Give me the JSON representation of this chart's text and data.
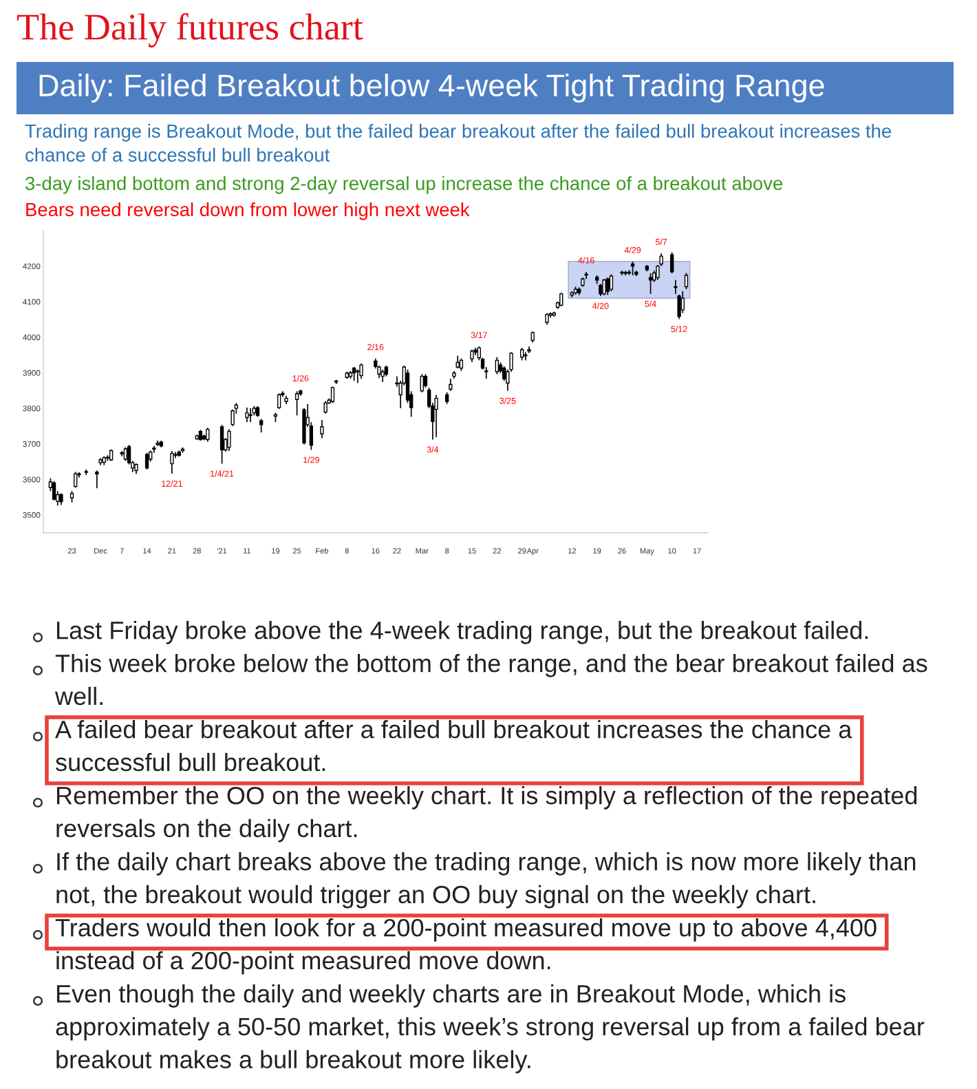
{
  "chart_data": {
    "type": "candlestick",
    "title": "The Daily futures chart",
    "subtitle": "Daily: Failed Breakout below 4-week Tight Trading Range",
    "x": [
      "2020-11-17",
      "2020-11-18",
      "2020-11-19",
      "2020-11-20",
      "2020-11-23",
      "2020-11-24",
      "2020-11-25",
      "2020-11-27",
      "2020-11-30",
      "2020-12-01",
      "2020-12-02",
      "2020-12-03",
      "2020-12-04",
      "2020-12-07",
      "2020-12-08",
      "2020-12-09",
      "2020-12-10",
      "2020-12-11",
      "2020-12-14",
      "2020-12-15",
      "2020-12-16",
      "2020-12-17",
      "2020-12-18",
      "2020-12-21",
      "2020-12-22",
      "2020-12-23",
      "2020-12-24",
      "2020-12-28",
      "2020-12-29",
      "2020-12-30",
      "2020-12-31",
      "2021-01-04",
      "2021-01-05",
      "2021-01-06",
      "2021-01-07",
      "2021-01-08",
      "2021-01-11",
      "2021-01-12",
      "2021-01-13",
      "2021-01-14",
      "2021-01-15",
      "2021-01-19",
      "2021-01-20",
      "2021-01-21",
      "2021-01-22",
      "2021-01-25",
      "2021-01-26",
      "2021-01-27",
      "2021-01-28",
      "2021-01-29",
      "2021-02-01",
      "2021-02-02",
      "2021-02-03",
      "2021-02-04",
      "2021-02-05",
      "2021-02-08",
      "2021-02-09",
      "2021-02-10",
      "2021-02-11",
      "2021-02-12",
      "2021-02-16",
      "2021-02-17",
      "2021-02-18",
      "2021-02-19",
      "2021-02-22",
      "2021-02-23",
      "2021-02-24",
      "2021-02-25",
      "2021-02-26",
      "2021-03-01",
      "2021-03-02",
      "2021-03-03",
      "2021-03-04",
      "2021-03-05",
      "2021-03-08",
      "2021-03-09",
      "2021-03-10",
      "2021-03-11",
      "2021-03-12",
      "2021-03-15",
      "2021-03-16",
      "2021-03-17",
      "2021-03-18",
      "2021-03-19",
      "2021-03-22",
      "2021-03-23",
      "2021-03-24",
      "2021-03-25",
      "2021-03-26",
      "2021-03-29",
      "2021-03-30",
      "2021-03-31",
      "2021-04-01",
      "2021-04-05",
      "2021-04-06",
      "2021-04-07",
      "2021-04-08",
      "2021-04-09",
      "2021-04-12",
      "2021-04-13",
      "2021-04-14",
      "2021-04-15",
      "2021-04-16",
      "2021-04-19",
      "2021-04-20",
      "2021-04-21",
      "2021-04-22",
      "2021-04-23",
      "2021-04-26",
      "2021-04-27",
      "2021-04-28",
      "2021-04-29",
      "2021-04-30",
      "2021-05-03",
      "2021-05-04",
      "2021-05-05",
      "2021-05-06",
      "2021-05-07",
      "2021-05-10",
      "2021-05-11",
      "2021-05-12",
      "2021-05-13",
      "2021-05-14"
    ],
    "ohlc": [
      [
        3577,
        3603,
        3567,
        3593
      ],
      [
        3590,
        3595,
        3541,
        3544
      ],
      [
        3538,
        3567,
        3526,
        3557
      ],
      [
        3557,
        3561,
        3528,
        3537
      ],
      [
        3548,
        3567,
        3535,
        3560
      ],
      [
        3580,
        3621,
        3577,
        3616
      ],
      [
        3615,
        3620,
        3605,
        3613
      ],
      [
        3620,
        3628,
        3612,
        3622
      ],
      [
        3620,
        3625,
        3575,
        3615
      ],
      [
        3647,
        3660,
        3640,
        3655
      ],
      [
        3648,
        3665,
        3640,
        3661
      ],
      [
        3660,
        3668,
        3652,
        3662
      ],
      [
        3655,
        3684,
        3652,
        3681
      ],
      [
        3675,
        3680,
        3665,
        3672
      ],
      [
        3657,
        3690,
        3652,
        3686
      ],
      [
        3692,
        3697,
        3642,
        3647
      ],
      [
        3632,
        3652,
        3620,
        3647
      ],
      [
        3625,
        3645,
        3615,
        3642
      ],
      [
        3670,
        3675,
        3628,
        3632
      ],
      [
        3657,
        3681,
        3650,
        3677
      ],
      [
        3685,
        3694,
        3675,
        3688
      ],
      [
        3698,
        3709,
        3694,
        3702
      ],
      [
        3705,
        3709,
        3690,
        3694
      ],
      [
        3644,
        3680,
        3616,
        3673
      ],
      [
        3668,
        3677,
        3660,
        3670
      ],
      [
        3677,
        3681,
        3664,
        3668
      ],
      [
        3681,
        3690,
        3675,
        3685
      ],
      [
        3714,
        3726,
        3712,
        3722
      ],
      [
        3735,
        3739,
        3709,
        3712
      ],
      [
        3722,
        3726,
        3710,
        3714
      ],
      [
        3712,
        3745,
        3706,
        3741
      ],
      [
        3748,
        3753,
        3644,
        3683
      ],
      [
        3683,
        3716,
        3678,
        3712
      ],
      [
        3690,
        3741,
        3680,
        3735
      ],
      [
        3754,
        3797,
        3750,
        3793
      ],
      [
        3800,
        3815,
        3785,
        3809
      ],
      [
        3774,
        3802,
        3761,
        3787
      ],
      [
        3782,
        3800,
        3761,
        3780
      ],
      [
        3787,
        3806,
        3780,
        3800
      ],
      [
        3802,
        3806,
        3776,
        3780
      ],
      [
        3765,
        3770,
        3732,
        3754
      ],
      [
        3778,
        3787,
        3761,
        3782
      ],
      [
        3802,
        3842,
        3798,
        3838
      ],
      [
        3842,
        3848,
        3832,
        3838
      ],
      [
        3819,
        3835,
        3812,
        3828
      ],
      [
        3825,
        3848,
        3780,
        3841
      ],
      [
        3849,
        3852,
        3835,
        3841
      ],
      [
        3796,
        3800,
        3698,
        3703
      ],
      [
        3754,
        3812,
        3748,
        3774
      ],
      [
        3750,
        3761,
        3683,
        3696
      ],
      [
        3728,
        3767,
        3716,
        3748
      ],
      [
        3789,
        3820,
        3785,
        3815
      ],
      [
        3815,
        3828,
        3812,
        3823
      ],
      [
        3819,
        3861,
        3815,
        3858
      ],
      [
        3877,
        3880,
        3868,
        3874
      ],
      [
        3887,
        3903,
        3883,
        3899
      ],
      [
        3890,
        3905,
        3883,
        3900
      ],
      [
        3913,
        3916,
        3877,
        3900
      ],
      [
        3903,
        3909,
        3871,
        3905
      ],
      [
        3892,
        3926,
        3883,
        3922
      ],
      [
        3933,
        3940,
        3912,
        3918
      ],
      [
        3896,
        3920,
        3885,
        3916
      ],
      [
        3890,
        3909,
        3874,
        3903
      ],
      [
        3916,
        3920,
        3890,
        3896
      ],
      [
        3871,
        3890,
        3861,
        3869
      ],
      [
        3838,
        3877,
        3800,
        3871
      ],
      [
        3871,
        3920,
        3864,
        3916
      ],
      [
        3899,
        3909,
        3815,
        3823
      ],
      [
        3838,
        3848,
        3776,
        3802
      ],
      [
        3849,
        3896,
        3845,
        3890
      ],
      [
        3890,
        3896,
        3858,
        3864
      ],
      [
        3851,
        3858,
        3800,
        3806
      ],
      [
        3806,
        3815,
        3712,
        3763
      ],
      [
        3797,
        3838,
        3719,
        3828
      ],
      [
        3838,
        3845,
        3812,
        3819
      ],
      [
        3854,
        3883,
        3849,
        3867
      ],
      [
        3890,
        3905,
        3883,
        3899
      ],
      [
        3916,
        3948,
        3912,
        3929
      ],
      [
        3913,
        3940,
        3905,
        3935
      ],
      [
        3939,
        3965,
        3930,
        3961
      ],
      [
        3964,
        3970,
        3950,
        3958
      ],
      [
        3942,
        3974,
        3935,
        3970
      ],
      [
        3938,
        3942,
        3909,
        3913
      ],
      [
        3905,
        3916,
        3883,
        3903
      ],
      [
        3903,
        3944,
        3896,
        3935
      ],
      [
        3922,
        3929,
        3899,
        3905
      ],
      [
        3913,
        3918,
        3877,
        3883
      ],
      [
        3871,
        3909,
        3849,
        3903
      ],
      [
        3909,
        3958,
        3903,
        3955
      ],
      [
        3944,
        3970,
        3935,
        3965
      ],
      [
        3950,
        3958,
        3935,
        3948
      ],
      [
        3961,
        3974,
        3955,
        3965
      ],
      [
        3991,
        4016,
        3985,
        4013
      ],
      [
        4042,
        4068,
        4035,
        4064
      ],
      [
        4062,
        4070,
        4055,
        4066
      ],
      [
        4062,
        4072,
        4058,
        4068
      ],
      [
        4084,
        4100,
        4080,
        4097
      ],
      [
        4090,
        4125,
        4087,
        4122
      ],
      [
        4119,
        4129,
        4112,
        4125
      ],
      [
        4125,
        4142,
        4120,
        4135
      ],
      [
        4135,
        4140,
        4119,
        4125
      ],
      [
        4146,
        4168,
        4142,
        4164
      ],
      [
        4175,
        4184,
        4164,
        4177
      ],
      [
        4169,
        4174,
        4150,
        4161
      ],
      [
        4146,
        4150,
        4116,
        4122
      ],
      [
        4122,
        4164,
        4118,
        4161
      ],
      [
        4164,
        4168,
        4119,
        4129
      ],
      [
        4135,
        4177,
        4129,
        4172
      ],
      [
        4181,
        4187,
        4174,
        4183
      ],
      [
        4182,
        4187,
        4174,
        4180
      ],
      [
        4181,
        4189,
        4175,
        4183
      ],
      [
        4206,
        4213,
        4174,
        4200
      ],
      [
        4183,
        4187,
        4172,
        4177
      ],
      [
        4200,
        4203,
        4185,
        4190
      ],
      [
        4168,
        4180,
        4122,
        4161
      ],
      [
        4161,
        4187,
        4155,
        4181
      ],
      [
        4168,
        4203,
        4161,
        4200
      ],
      [
        4206,
        4236,
        4200,
        4228
      ],
      [
        4232,
        4239,
        4180,
        4184
      ],
      [
        4142,
        4161,
        4122,
        4140
      ],
      [
        4116,
        4120,
        4051,
        4058
      ],
      [
        4077,
        4129,
        4068,
        4110
      ],
      [
        4142,
        4181,
        4135,
        4174
      ]
    ],
    "series": [
      {
        "type": "area",
        "x": [
          "2021-04-11",
          "2021-05-15"
        ],
        "values": [
          null,
          null
        ],
        "lower": [
          4110,
          4110
        ],
        "upper": [
          4213,
          4213
        ],
        "color": "#c9d3f3"
      }
    ],
    "xlim": [
      "2020-11-15",
      "2021-05-20"
    ],
    "xticks": [
      {
        "value": "2020-11-23",
        "label": "23"
      },
      {
        "value": "2020-12-01",
        "label": "Dec"
      },
      {
        "value": "2020-12-07",
        "label": "7"
      },
      {
        "value": "2020-12-14",
        "label": "14"
      },
      {
        "value": "2020-12-21",
        "label": "21"
      },
      {
        "value": "2020-12-28",
        "label": "28"
      },
      {
        "value": "2021-01-04",
        "label": "'21"
      },
      {
        "value": "2021-01-11",
        "label": "11"
      },
      {
        "value": "2021-01-19",
        "label": "19"
      },
      {
        "value": "2021-01-25",
        "label": "25"
      },
      {
        "value": "2021-02-01",
        "label": "Feb"
      },
      {
        "value": "2021-02-08",
        "label": "8"
      },
      {
        "value": "2021-02-16",
        "label": "16"
      },
      {
        "value": "2021-02-22",
        "label": "22"
      },
      {
        "value": "2021-03-01",
        "label": "Mar"
      },
      {
        "value": "2021-03-08",
        "label": "8"
      },
      {
        "value": "2021-03-15",
        "label": "15"
      },
      {
        "value": "2021-03-22",
        "label": "22"
      },
      {
        "value": "2021-03-29",
        "label": "29"
      },
      {
        "value": "2021-04-01",
        "label": "Apr"
      },
      {
        "value": "2021-04-12",
        "label": "12"
      },
      {
        "value": "2021-04-19",
        "label": "19"
      },
      {
        "value": "2021-04-26",
        "label": "26"
      },
      {
        "value": "2021-05-03",
        "label": "May"
      },
      {
        "value": "2021-05-10",
        "label": "10"
      },
      {
        "value": "2021-05-17",
        "label": "17"
      }
    ],
    "ylim": [
      3450,
      4300
    ],
    "yticks": [
      3500,
      3600,
      3700,
      3800,
      3900,
      4000,
      4100,
      4200
    ],
    "grid": false,
    "annotations": [
      "Trading range is Breakout Mode, but the failed bear breakout after the failed bull breakout increases the chance of a successful bull breakout",
      "3-day island bottom and strong 2-day reversal up increase the chance of a breakout above",
      "Bears need reversal down from lower high next week",
      {
        "text": "12/21",
        "x": "2020-12-21",
        "y": 3616
      },
      {
        "text": "1/4/21",
        "x": "2021-01-04",
        "y": 3644
      },
      {
        "text": "1/26",
        "x": "2021-01-26",
        "y": 3852
      },
      {
        "text": "1/29",
        "x": "2021-01-29",
        "y": 3683
      },
      {
        "text": "2/16",
        "x": "2021-02-16",
        "y": 3940
      },
      {
        "text": "3/4",
        "x": "2021-03-04",
        "y": 3712
      },
      {
        "text": "3/17",
        "x": "2021-03-17",
        "y": 3974
      },
      {
        "text": "3/25",
        "x": "2021-03-25",
        "y": 3849
      },
      {
        "text": "4/16",
        "x": "2021-04-16",
        "y": 4184
      },
      {
        "text": "4/20",
        "x": "2021-04-20",
        "y": 4116
      },
      {
        "text": "4/29",
        "x": "2021-04-29",
        "y": 4213
      },
      {
        "text": "5/4",
        "x": "2021-05-04",
        "y": 4122
      },
      {
        "text": "5/7",
        "x": "2021-05-07",
        "y": 4236
      },
      {
        "text": "5/12",
        "x": "2021-05-12",
        "y": 4051
      },
      "Last Friday broke above the 4-week trading range, but the breakout failed.",
      "This week broke below the bottom of the range, and the bear breakout failed as well.",
      "A failed bear breakout after a failed bull breakout increases the chance a successful bull breakout.",
      "Remember the OO on the weekly chart. It is simply a reflection of the repeated reversals on the daily chart.",
      "If the daily chart breaks above the trading range, which is now more likely than not, the breakout would trigger an OO buy signal on the weekly chart.",
      "Traders would then look for a 200-point measured move up to above 4,400 instead of a 200-point measured move down.",
      "Even though the daily and weekly charts are in Breakout Mode, which is approximately a 50-50 market, this week’s strong reversal up from a failed bear breakout makes a bull breakout more likely."
    ]
  }
}
